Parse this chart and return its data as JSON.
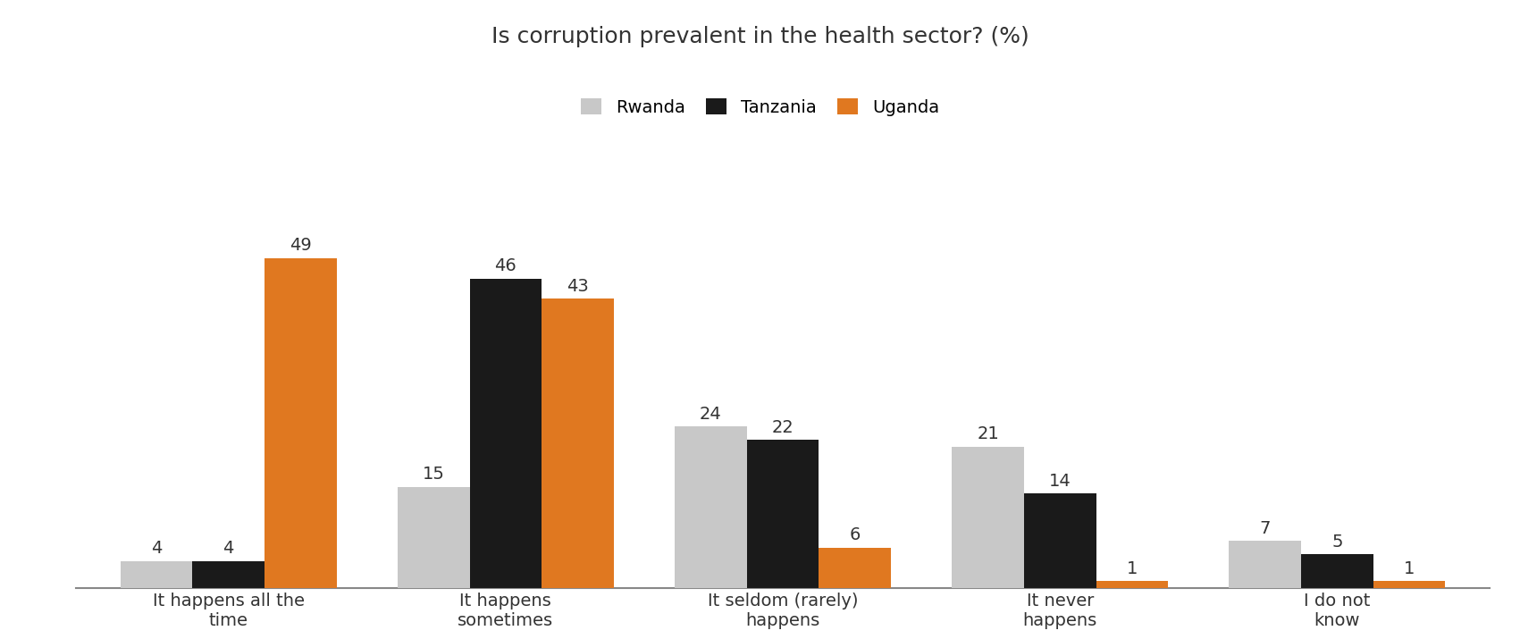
{
  "title": "Is corruption prevalent in the health sector? (%)",
  "categories": [
    "It happens all the\ntime",
    "It happens\nsometimes",
    "It seldom (rarely)\nhappens",
    "It never\nhappens",
    "I do not\nknow"
  ],
  "series": {
    "Rwanda": [
      4,
      15,
      24,
      21,
      7
    ],
    "Tanzania": [
      4,
      46,
      22,
      14,
      5
    ],
    "Uganda": [
      49,
      43,
      6,
      1,
      1
    ]
  },
  "colors": {
    "Rwanda": "#c8c8c8",
    "Tanzania": "#1a1a1a",
    "Uganda": "#e07820"
  },
  "legend_labels": [
    "Rwanda",
    "Tanzania",
    "Uganda"
  ],
  "ylim": [
    0,
    57
  ],
  "bar_width": 0.26,
  "label_fontsize": 14,
  "title_fontsize": 18,
  "tick_fontsize": 14,
  "legend_fontsize": 14,
  "background_color": "#ffffff"
}
